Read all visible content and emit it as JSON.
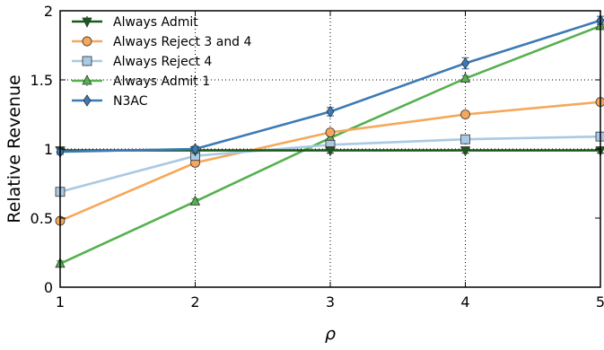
{
  "chart_data": {
    "type": "line",
    "xlabel": "ρ",
    "ylabel": "Relative Revenue",
    "xlim": [
      1,
      5
    ],
    "ylim": [
      0,
      2
    ],
    "x_ticks": [
      1,
      2,
      3,
      4,
      5
    ],
    "y_ticks": [
      0,
      0.5,
      1,
      1.5,
      2
    ],
    "x_tick_labels": [
      "1",
      "2",
      "3",
      "4",
      "5"
    ],
    "y_tick_labels": [
      "0",
      "0.5",
      "1",
      "1.5",
      "2"
    ],
    "grid": "dotted at x=2,3,4 and y=1.5",
    "legend_position": "top-left",
    "series": [
      {
        "name": "Always Admit",
        "color": "#1a5a1a",
        "marker": "triangle-down",
        "x": [
          1,
          2,
          3,
          4,
          5
        ],
        "y": [
          0.99,
          0.99,
          0.99,
          0.99,
          0.99
        ],
        "err": [
          0.02,
          0.02,
          0.02,
          0.02,
          0.02
        ]
      },
      {
        "name": "Always Reject 3 and 4",
        "color": "#f5a85a",
        "marker": "circle",
        "x": [
          1,
          2,
          3,
          4,
          5
        ],
        "y": [
          0.48,
          0.9,
          1.12,
          1.25,
          1.34
        ],
        "err": [
          0.02,
          0.02,
          0.02,
          0.02,
          0.02
        ]
      },
      {
        "name": "Always Reject 4",
        "color": "#a9c9e4",
        "marker": "square",
        "x": [
          1,
          2,
          3,
          4,
          5
        ],
        "y": [
          0.69,
          0.95,
          1.03,
          1.07,
          1.09
        ],
        "err": [
          0.02,
          0.02,
          0.02,
          0.02,
          0.02
        ]
      },
      {
        "name": "Always Admit 1",
        "color": "#56b04f",
        "marker": "triangle-up",
        "x": [
          1,
          2,
          3,
          4,
          5
        ],
        "y": [
          0.17,
          0.62,
          1.08,
          1.51,
          1.89
        ],
        "err": [
          0.02,
          0.02,
          0.02,
          0.02,
          0.02
        ]
      },
      {
        "name": "N3AC",
        "color": "#3c7ab5",
        "marker": "diamond",
        "x": [
          1,
          2,
          3,
          4,
          5
        ],
        "y": [
          0.98,
          1.0,
          1.27,
          1.62,
          1.93
        ],
        "err": [
          0.02,
          0.02,
          0.03,
          0.04,
          0.03
        ]
      }
    ]
  }
}
